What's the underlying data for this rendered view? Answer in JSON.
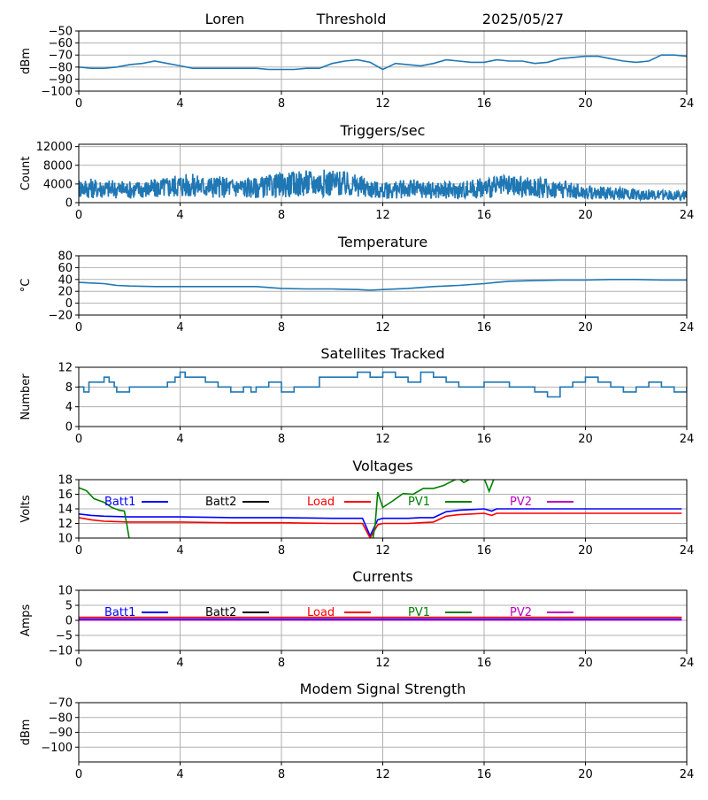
{
  "header": {
    "station": "Loren",
    "plot": "Threshold",
    "date": "2025/05/27"
  },
  "chart_data": [
    {
      "type": "line",
      "title": "",
      "ylabel": "dBm",
      "ylim": [
        -100,
        -50
      ],
      "yticks": [
        -100,
        -90,
        -80,
        -70,
        -60,
        -50
      ],
      "xlim": [
        0,
        24
      ],
      "xticks": [
        0,
        4,
        8,
        12,
        16,
        20,
        24
      ],
      "grid": true,
      "series": [
        {
          "color": "#1f77b4",
          "x": [
            0,
            0.5,
            1,
            1.5,
            2,
            2.5,
            3,
            3.5,
            4,
            4.5,
            5,
            5.5,
            6,
            6.5,
            7,
            7.5,
            8,
            8.5,
            9,
            9.5,
            10,
            10.5,
            11,
            11.5,
            12,
            12.5,
            13,
            13.5,
            14,
            14.5,
            15,
            15.5,
            16,
            16.5,
            17,
            17.5,
            18,
            18.5,
            19,
            19.5,
            20,
            20.5,
            21,
            21.5,
            22,
            22.5,
            23,
            23.5,
            24
          ],
          "y": [
            -80,
            -81,
            -81,
            -80,
            -78,
            -77,
            -75,
            -77,
            -79,
            -81,
            -81,
            -81,
            -81,
            -81,
            -81,
            -82,
            -82,
            -82,
            -81,
            -81,
            -77,
            -75,
            -74,
            -76,
            -82,
            -77,
            -78,
            -79,
            -77,
            -74,
            -75,
            -76,
            -76,
            -74,
            -75,
            -75,
            -77,
            -76,
            -73,
            -72,
            -71,
            -71,
            -73,
            -75,
            -76,
            -75,
            -70,
            -70,
            -71
          ]
        }
      ]
    },
    {
      "type": "line",
      "title": "Triggers/sec",
      "ylabel": "Count",
      "ylim": [
        0,
        12500
      ],
      "yticks": [
        0,
        4000,
        8000,
        12000
      ],
      "xlim": [
        0,
        24
      ],
      "xticks": [
        0,
        4,
        8,
        12,
        16,
        20,
        24
      ],
      "grid": true,
      "series": [
        {
          "color": "#1f77b4",
          "noise": true,
          "x": [
            0,
            1,
            2,
            3,
            4,
            5,
            6,
            7,
            8,
            9,
            10,
            11,
            12,
            13,
            14,
            15,
            16,
            17,
            18,
            19,
            20,
            21,
            22,
            23,
            24
          ],
          "y": [
            3200,
            3000,
            2800,
            3000,
            3800,
            3500,
            3300,
            3200,
            3800,
            4200,
            4300,
            3600,
            2500,
            3000,
            2700,
            2600,
            3200,
            3500,
            3200,
            3000,
            2200,
            2000,
            1800,
            1600,
            1500
          ]
        }
      ]
    },
    {
      "type": "line",
      "title": "Temperature",
      "ylabel": "°C",
      "ylim": [
        -20,
        80
      ],
      "yticks": [
        -20,
        0,
        20,
        40,
        60,
        80
      ],
      "xlim": [
        0,
        24
      ],
      "xticks": [
        0,
        4,
        8,
        12,
        16,
        20,
        24
      ],
      "grid": true,
      "series": [
        {
          "color": "#1f77b4",
          "x": [
            0,
            0.5,
            1,
            1.5,
            2,
            3,
            4,
            5,
            6,
            7,
            8,
            9,
            10,
            11,
            11.5,
            12,
            13,
            14,
            15,
            16,
            16.5,
            17,
            18,
            19,
            20,
            21,
            22,
            23,
            24
          ],
          "y": [
            35,
            34,
            33,
            30,
            29,
            28,
            28,
            28,
            28,
            28,
            25,
            24,
            24,
            23,
            22,
            23,
            25,
            28,
            30,
            33,
            35,
            37,
            38,
            39,
            39,
            40,
            40,
            39,
            39
          ]
        }
      ]
    },
    {
      "type": "line",
      "title": "Satellites Tracked",
      "ylabel": "Number",
      "ylim": [
        0,
        12
      ],
      "yticks": [
        0,
        4,
        8,
        12
      ],
      "xlim": [
        0,
        24
      ],
      "xticks": [
        0,
        4,
        8,
        12,
        16,
        20,
        24
      ],
      "grid": true,
      "series": [
        {
          "color": "#1f77b4",
          "step": true,
          "x": [
            0,
            0.2,
            0.4,
            0.8,
            1,
            1.2,
            1.4,
            1.5,
            2,
            2.5,
            3,
            3.5,
            3.8,
            4,
            4.2,
            5,
            5.5,
            6,
            6.5,
            6.8,
            7,
            7.5,
            8,
            8.5,
            9,
            9.5,
            10,
            10.5,
            11,
            11.5,
            12,
            12.5,
            13,
            13.5,
            14,
            14.5,
            15,
            15.5,
            16,
            16.5,
            17,
            17.5,
            18,
            18.5,
            19,
            19.5,
            20,
            20.5,
            21,
            21.5,
            22,
            22.5,
            23,
            23.5,
            24
          ],
          "y": [
            8,
            7,
            9,
            9,
            10,
            9,
            8,
            7,
            8,
            8,
            8,
            9,
            10,
            11,
            10,
            9,
            8,
            7,
            8,
            7,
            8,
            9,
            7,
            8,
            8,
            10,
            10,
            10,
            11,
            10,
            11,
            10,
            9,
            11,
            10,
            9,
            8,
            8,
            9,
            9,
            8,
            8,
            7,
            6,
            8,
            9,
            10,
            9,
            8,
            7,
            8,
            9,
            8,
            7,
            8
          ]
        }
      ]
    },
    {
      "type": "line",
      "title": "Voltages",
      "ylabel": "Volts",
      "ylim": [
        10,
        18
      ],
      "yticks": [
        10,
        12,
        14,
        16,
        18
      ],
      "xlim": [
        0,
        24
      ],
      "xticks": [
        0,
        4,
        8,
        12,
        16,
        20,
        24
      ],
      "grid": true,
      "legend": [
        "Batt1",
        "Batt2",
        "Load",
        "PV1",
        "PV2"
      ],
      "legend_colors": [
        "#0000ff",
        "#000000",
        "#ff0000",
        "#008000",
        "#bf00bf"
      ],
      "series": [
        {
          "name": "Batt1",
          "color": "#0000ff",
          "x": [
            0,
            0.5,
            1,
            2,
            3,
            4,
            6,
            8,
            10,
            11.2,
            11.5,
            11.8,
            12,
            13,
            13.5,
            14,
            14.5,
            15,
            15.5,
            16,
            16.3,
            16.5,
            17,
            18,
            20,
            22,
            23.8
          ],
          "y": [
            13.3,
            13.1,
            13.0,
            12.9,
            12.9,
            12.9,
            12.8,
            12.8,
            12.7,
            12.7,
            10.3,
            12.5,
            12.7,
            12.7,
            12.8,
            12.8,
            13.6,
            13.8,
            13.9,
            14.0,
            13.7,
            14.0,
            14.0,
            14.0,
            14.0,
            14.0,
            14.0
          ]
        },
        {
          "name": "Load",
          "color": "#ff0000",
          "x": [
            0,
            0.5,
            1,
            2,
            3,
            4,
            6,
            8,
            10,
            11.2,
            11.5,
            11.8,
            12,
            13,
            13.5,
            14,
            14.5,
            15,
            15.5,
            16,
            16.3,
            16.5,
            17,
            18,
            20,
            22,
            23.8
          ],
          "y": [
            12.8,
            12.5,
            12.3,
            12.2,
            12.2,
            12.2,
            12.1,
            12.1,
            12.0,
            12.0,
            10.0,
            11.8,
            12.0,
            12.0,
            12.1,
            12.2,
            13.0,
            13.2,
            13.3,
            13.4,
            13.1,
            13.4,
            13.4,
            13.4,
            13.4,
            13.4,
            13.4
          ]
        },
        {
          "name": "PV1",
          "color": "#008000",
          "x": [
            0,
            0.3,
            0.6,
            1,
            1.3,
            1.6,
            1.8,
            1.9,
            2.0,
            11.6,
            11.7,
            11.8,
            12.0,
            12.4,
            12.8,
            13.2,
            13.6,
            14.0,
            14.4,
            14.8,
            15.0,
            15.2,
            15.5,
            16.0,
            16.2,
            16.4
          ],
          "y": [
            16.9,
            16.5,
            15.4,
            14.9,
            14.2,
            13.8,
            13.7,
            11.8,
            9.7,
            9.7,
            11.8,
            16.3,
            14.2,
            15.1,
            16.1,
            16.0,
            16.8,
            16.8,
            17.2,
            17.9,
            18.2,
            17.6,
            18.2,
            18.2,
            16.4,
            18.2
          ]
        },
        {
          "name": "Batt2",
          "color": "#000000",
          "x": [],
          "y": []
        },
        {
          "name": "PV2",
          "color": "#bf00bf",
          "x": [],
          "y": []
        }
      ]
    },
    {
      "type": "line",
      "title": "Currents",
      "ylabel": "Amps",
      "ylim": [
        -10,
        10
      ],
      "yticks": [
        -10,
        -5,
        0,
        5,
        10
      ],
      "xlim": [
        0,
        24
      ],
      "xticks": [
        0,
        4,
        8,
        12,
        16,
        20,
        24
      ],
      "grid": true,
      "legend": [
        "Batt1",
        "Batt2",
        "Load",
        "PV1",
        "PV2"
      ],
      "legend_colors": [
        "#0000ff",
        "#000000",
        "#ff0000",
        "#008000",
        "#bf00bf"
      ],
      "series": [
        {
          "name": "Load",
          "color": "#ff0000",
          "x": [
            0,
            23.8
          ],
          "y": [
            1.0,
            1.0
          ]
        },
        {
          "name": "Batt1",
          "color": "#0000ff",
          "x": [
            0,
            23.8
          ],
          "y": [
            0.4,
            0.4
          ]
        },
        {
          "name": "PV2",
          "color": "#bf00bf",
          "x": [
            0,
            23.8
          ],
          "y": [
            0.1,
            0.1
          ]
        },
        {
          "name": "Batt2",
          "color": "#000000",
          "x": [],
          "y": []
        },
        {
          "name": "PV1",
          "color": "#008000",
          "x": [],
          "y": []
        }
      ]
    },
    {
      "type": "line",
      "title": "Modem Signal Strength",
      "ylabel": "dBm",
      "ylim": [
        -110,
        -70
      ],
      "yticks": [
        -100,
        -90,
        -80,
        -70
      ],
      "xlim": [
        0,
        24
      ],
      "xticks": [
        0,
        4,
        8,
        12,
        16,
        20,
        24
      ],
      "grid": true,
      "series": []
    }
  ]
}
